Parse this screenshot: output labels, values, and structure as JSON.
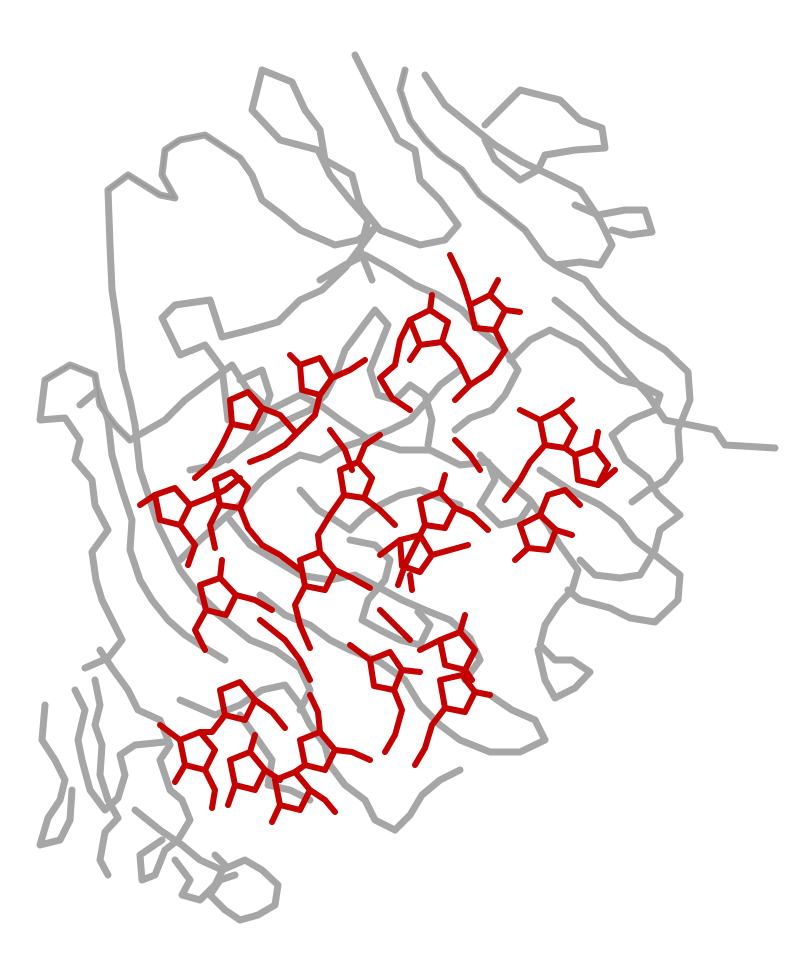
{
  "scene": {
    "background": "#ffffff",
    "protein_color": "#a6a6a6",
    "protein_shade": "#8a8a8a",
    "ligand_color": "#c40000",
    "ligand_shade": "#8e0000",
    "representation": "backbone-trace-with-stick-ligand"
  }
}
